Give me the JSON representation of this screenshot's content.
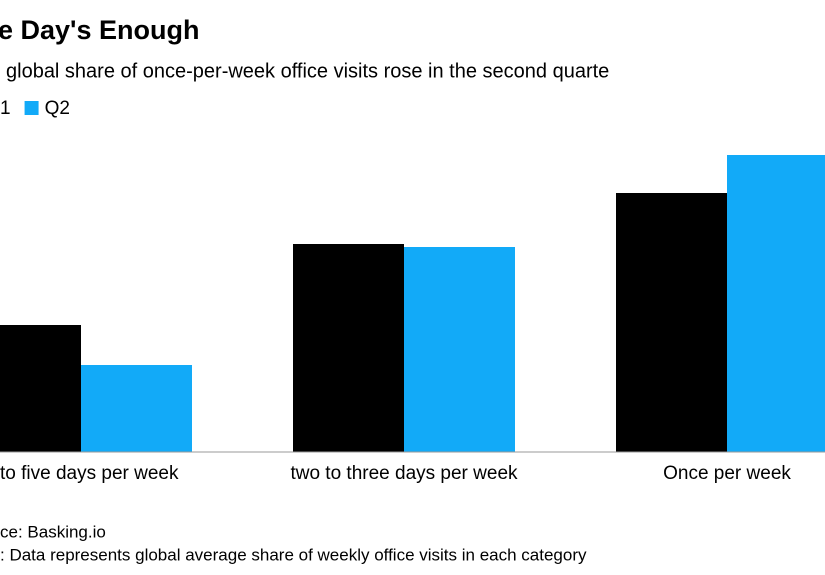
{
  "chart_data": {
    "type": "bar",
    "title": "e Day's Enough",
    "subtitle": "global share of once-per-week office visits rose in the second quarte",
    "categories": [
      "to five days per week",
      "two to three days per week",
      "Once per week"
    ],
    "series": [
      {
        "name": "1",
        "color": "#000000",
        "values": [
          127,
          208,
          259
        ]
      },
      {
        "name": "Q2",
        "color": "#12aaf8",
        "values": [
          87,
          205,
          297
        ]
      }
    ],
    "ylim": [
      0,
      300
    ],
    "source": "ce: Basking.io",
    "note": ": Data represents global average share of weekly office visits in each category"
  }
}
